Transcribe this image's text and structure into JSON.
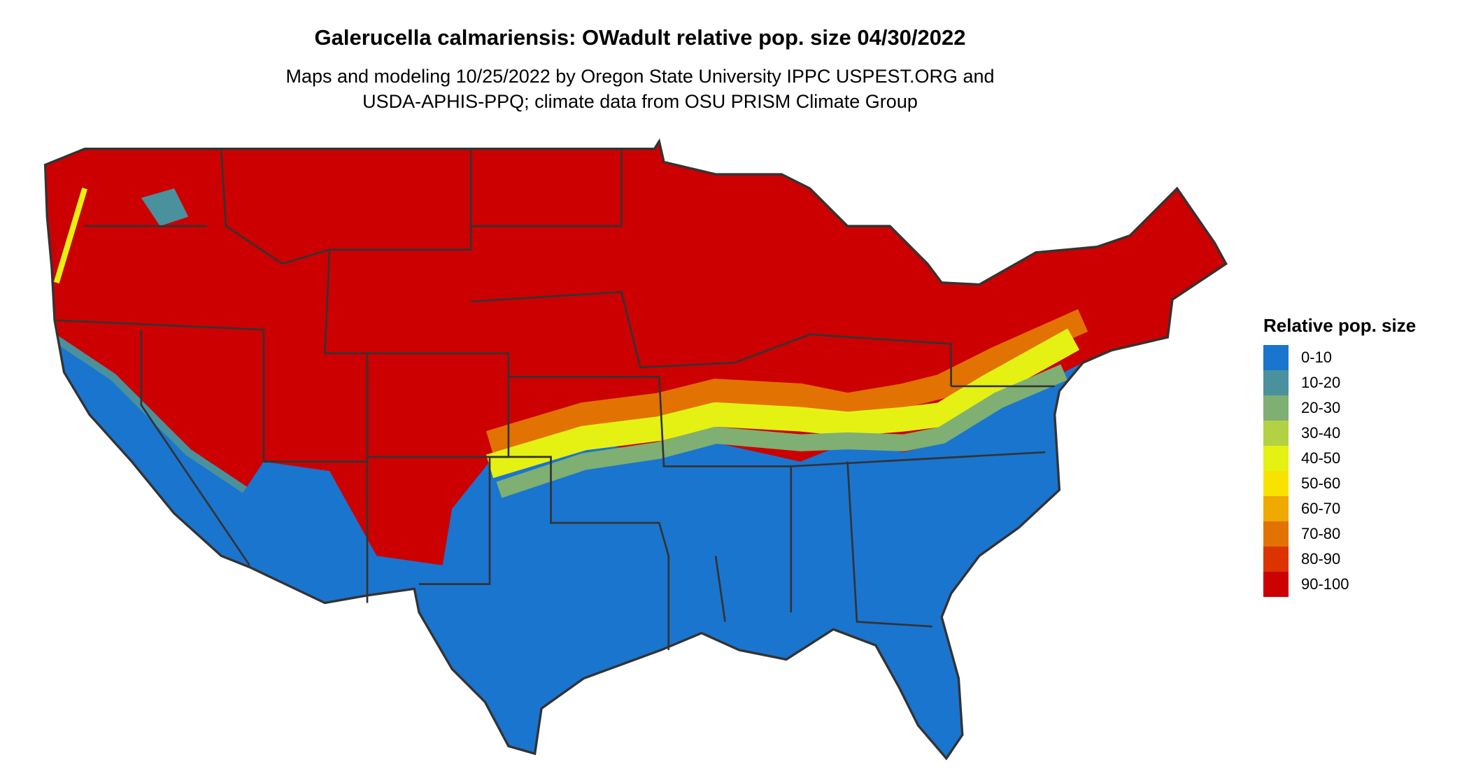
{
  "title": "Galerucella calmariensis: OWadult relative pop. size 04/30/2022",
  "subtitle_lines": [
    "Maps and modeling 10/25/2022 by Oregon State University IPPC USPEST.ORG and",
    "USDA-APHIS-PPQ; climate data from OSU PRISM Climate Group"
  ],
  "map": {
    "region": "Contiguous United States",
    "boundaries": "state borders",
    "pattern": "90-100 across north and west interior; 0-10 across south, southwest and California coast; transitional bands along central latitude"
  },
  "legend": {
    "title": "Relative pop. size",
    "items": [
      {
        "label": "0-10",
        "color": "#1a75cf"
      },
      {
        "label": "10-20",
        "color": "#4a919e"
      },
      {
        "label": "20-30",
        "color": "#7faf72"
      },
      {
        "label": "30-40",
        "color": "#b3d144"
      },
      {
        "label": "40-50",
        "color": "#e5f113"
      },
      {
        "label": "50-60",
        "color": "#f8e200"
      },
      {
        "label": "60-70",
        "color": "#efa900"
      },
      {
        "label": "70-80",
        "color": "#e27202"
      },
      {
        "label": "80-90",
        "color": "#db3400"
      },
      {
        "label": "90-100",
        "color": "#cc0000"
      }
    ]
  }
}
